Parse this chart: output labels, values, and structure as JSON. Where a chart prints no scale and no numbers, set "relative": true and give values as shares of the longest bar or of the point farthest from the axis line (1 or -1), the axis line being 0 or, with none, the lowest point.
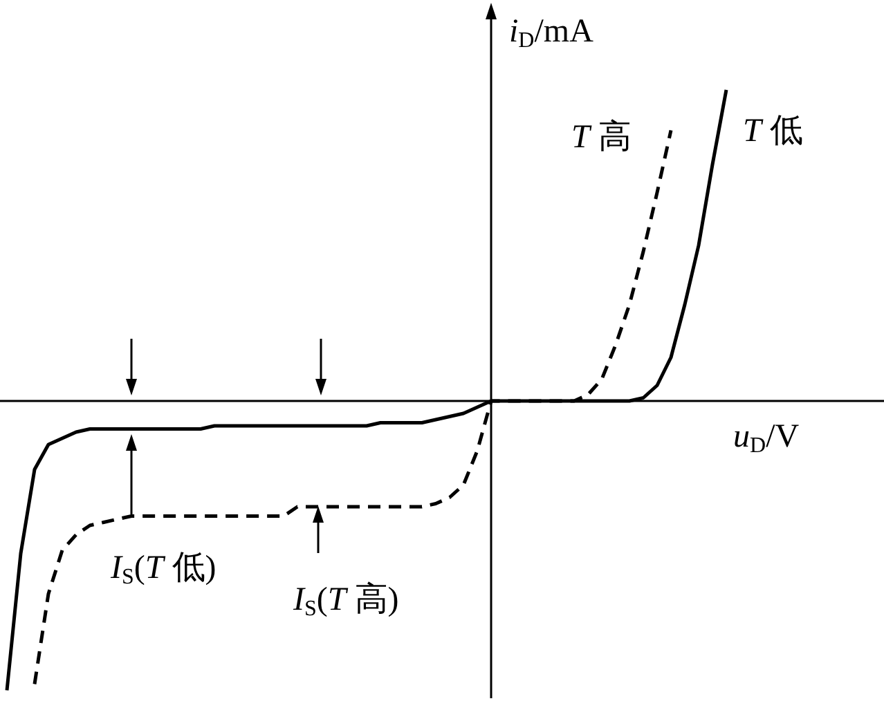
{
  "chart_data": {
    "type": "line",
    "relative": true,
    "categories": [
      null,
      null,
      null,
      null,
      null,
      null,
      null,
      null,
      null,
      null,
      null,
      null,
      null,
      null,
      null,
      null,
      null,
      null,
      null,
      null,
      null,
      null,
      null,
      null,
      null,
      null,
      null,
      null,
      null,
      null,
      null,
      null,
      null,
      null,
      null,
      null,
      null,
      null,
      null,
      null,
      null,
      null,
      null,
      null,
      null,
      null,
      null,
      null,
      null,
      null,
      null,
      null,
      null,
      null,
      null,
      null,
      null,
      null,
      null,
      null,
      null,
      null,
      null,
      null
    ],
    "xlabel": "*u*$_{D}$/V",
    "ylabel": "*i*$_{D}$/mA",
    "series": [
      {
        "name": "*T* 高",
        "color": "#000000",
        "line_style": "dashed",
        "values": [
          null,
          null,
          -0.91,
          -0.62,
          -0.48,
          -0.43,
          -0.4,
          -0.39,
          -0.38,
          -0.37,
          -0.37,
          -0.37,
          -0.37,
          -0.37,
          -0.37,
          -0.37,
          -0.37,
          -0.37,
          -0.37,
          -0.37,
          -0.37,
          -0.34,
          -0.34,
          -0.34,
          -0.34,
          -0.34,
          -0.34,
          -0.34,
          -0.34,
          -0.34,
          -0.34,
          -0.33,
          -0.31,
          -0.27,
          -0.16,
          0,
          0,
          0,
          0,
          0,
          0,
          0,
          0.02,
          0.07,
          0.18,
          0.31,
          0.48,
          0.67,
          0.87,
          null,
          null,
          null,
          null,
          null,
          null,
          null,
          null,
          null,
          null,
          null,
          null,
          null,
          null,
          null
        ]
      },
      {
        "name": "*T* 低",
        "color": "#000000",
        "line_style": "solid",
        "values": [
          -0.93,
          -0.49,
          -0.22,
          -0.14,
          -0.12,
          -0.1,
          -0.09,
          -0.09,
          -0.09,
          -0.09,
          -0.09,
          -0.09,
          -0.09,
          -0.09,
          -0.09,
          -0.08,
          -0.08,
          -0.08,
          -0.08,
          -0.08,
          -0.08,
          -0.08,
          -0.08,
          -0.08,
          -0.08,
          -0.08,
          -0.08,
          -0.07,
          -0.07,
          -0.07,
          -0.07,
          -0.06,
          -0.05,
          -0.04,
          -0.02,
          0,
          0,
          0,
          0,
          0,
          0,
          0,
          0,
          0,
          0,
          0,
          0.01,
          0.05,
          0.14,
          0.31,
          0.5,
          0.76,
          1,
          null,
          null,
          null,
          null,
          null,
          null,
          null,
          null,
          null,
          null,
          null
        ]
      }
    ],
    "annotations": [
      "*I*$_{S}$(*T* 低)",
      "*I*$_{S}$(*T* 高)"
    ]
  }
}
